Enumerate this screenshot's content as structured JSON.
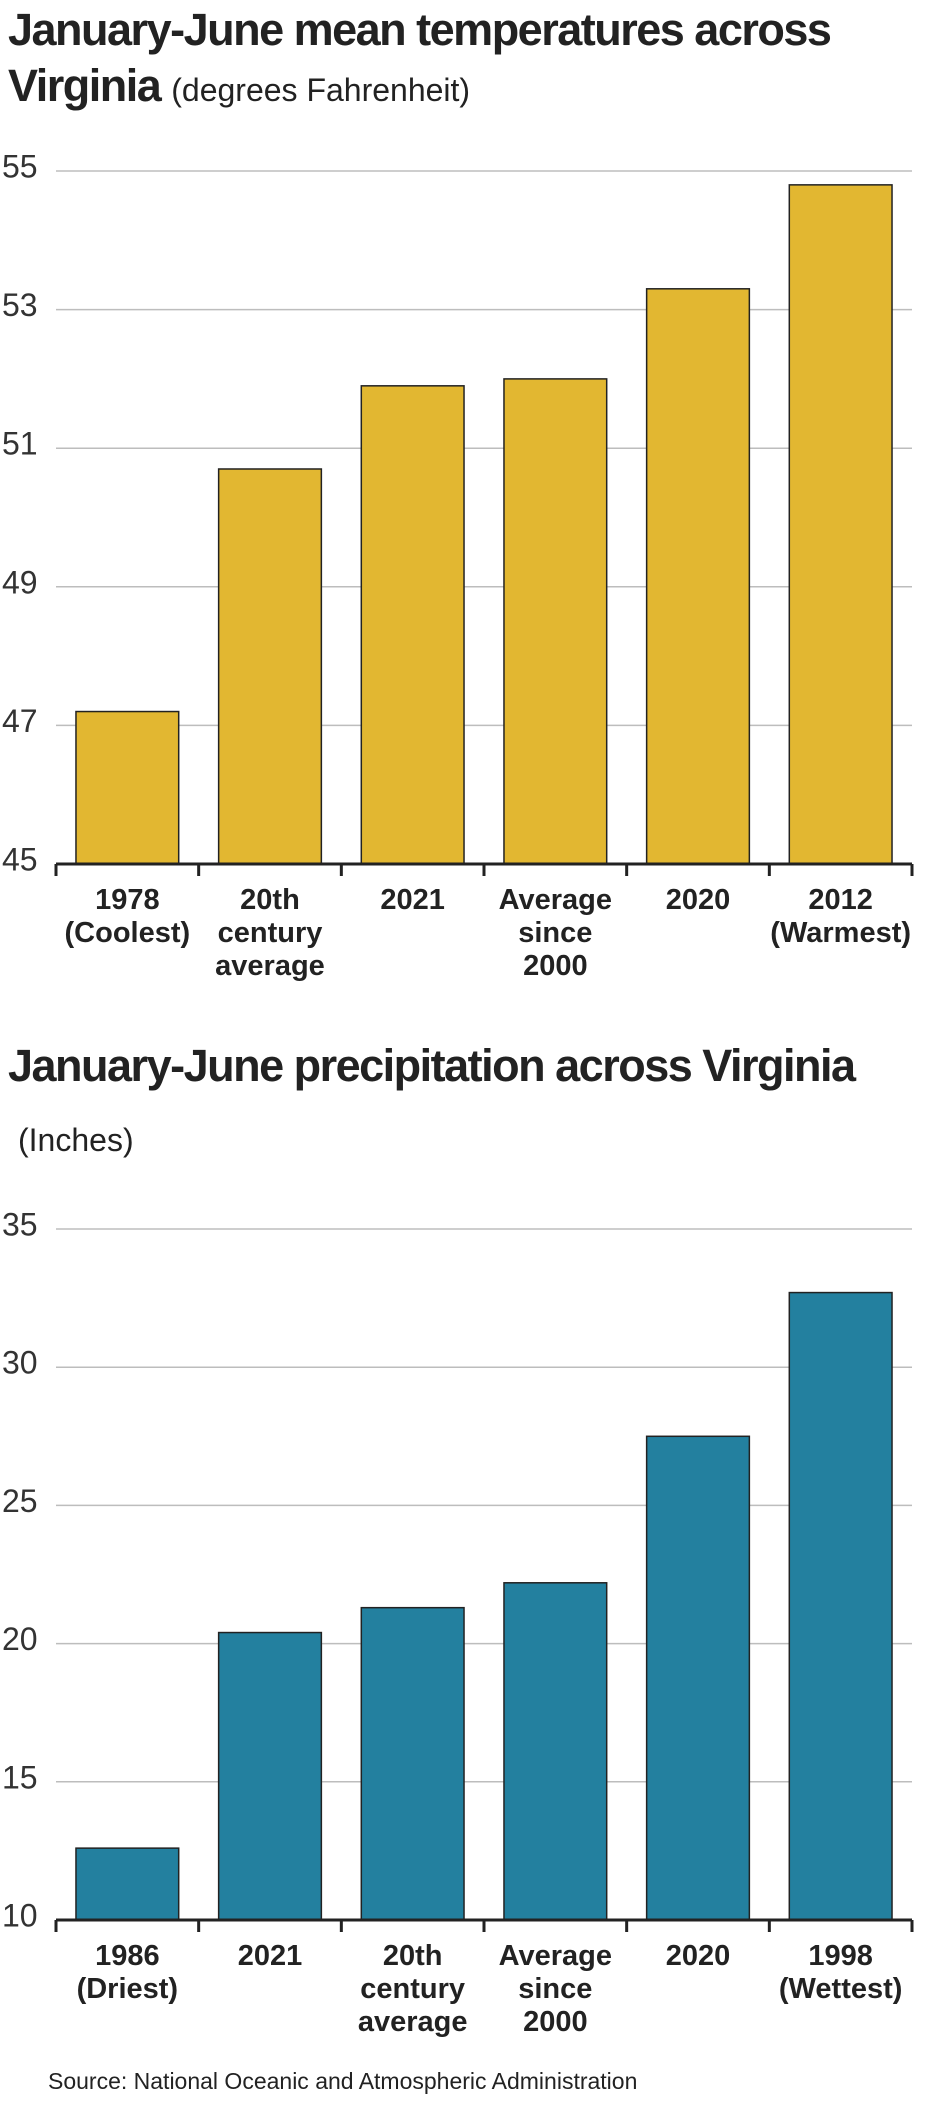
{
  "chart_data": [
    {
      "type": "bar",
      "title": "January-June mean temperatures across Virginia",
      "subtitle": "(degrees Fahrenheit)",
      "categories": [
        "1978 (Coolest)",
        "20th century average",
        "2021",
        "Average since 2000",
        "2020",
        "2012 (Warmest)"
      ],
      "values": [
        47.2,
        50.7,
        51.9,
        52.0,
        53.3,
        54.8
      ],
      "color": "#e2b731",
      "ylim": [
        45,
        55
      ],
      "yticks": [
        45,
        47,
        49,
        51,
        53,
        55
      ],
      "grid": true
    },
    {
      "type": "bar",
      "title": "January-June precipitation across Virginia",
      "subtitle": "(Inches)",
      "categories": [
        "1986 (Driest)",
        "2021",
        "20th century average",
        "Average since 2000",
        "2020",
        "1998 (Wettest)"
      ],
      "values": [
        12.6,
        20.4,
        21.3,
        22.2,
        27.5,
        32.7
      ],
      "color": "#23809f",
      "ylim": [
        10,
        35
      ],
      "yticks": [
        10,
        15,
        20,
        25,
        30,
        35
      ],
      "grid": true
    }
  ],
  "source": "Source: National Oceanic and Atmospheric Administration"
}
